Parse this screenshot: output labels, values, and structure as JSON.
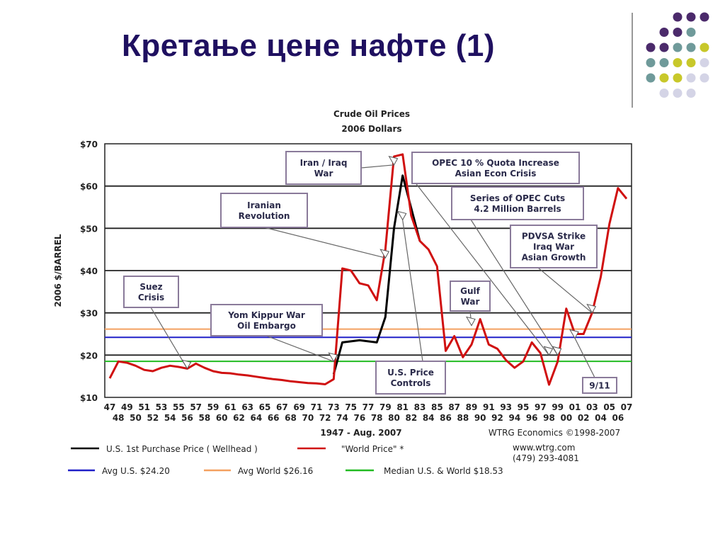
{
  "slide": {
    "title": "Кретање цене нафте (1)"
  },
  "decoration": {
    "dot_colors": [
      "#4b2a6b",
      "#6f9a9a",
      "#c8c82a",
      "#d4d4e6"
    ]
  },
  "chart_data": {
    "type": "line",
    "title": "Crude Oil Prices",
    "subtitle": "2006 Dollars",
    "ylabel": "2006 $/BARREL",
    "xlabel": "1947 - Aug. 2007",
    "source": "WTRG Economics  ©1998-2007",
    "website": "www.wtrg.com",
    "phone": "(479) 293-4081",
    "ylim": [
      10,
      70
    ],
    "xlim": [
      1947,
      2007
    ],
    "y_ticks": [
      "$10",
      "$20",
      "$30",
      "$40",
      "$50",
      "$60",
      "$70"
    ],
    "y_tick_values": [
      10,
      20,
      30,
      40,
      50,
      60,
      70
    ],
    "x_ticks_top": [
      "47",
      "49",
      "51",
      "53",
      "55",
      "57",
      "59",
      "61",
      "63",
      "65",
      "67",
      "69",
      "71",
      "73",
      "75",
      "77",
      "79",
      "81",
      "83",
      "85",
      "87",
      "89",
      "91",
      "93",
      "95",
      "97",
      "99",
      "01",
      "03",
      "05",
      "07"
    ],
    "x_ticks_bottom": [
      "48",
      "50",
      "52",
      "54",
      "56",
      "58",
      "60",
      "62",
      "64",
      "66",
      "68",
      "70",
      "72",
      "74",
      "76",
      "78",
      "80",
      "82",
      "84",
      "86",
      "88",
      "90",
      "92",
      "94",
      "96",
      "98",
      "00",
      "02",
      "04",
      "06"
    ],
    "grid": true,
    "series": [
      {
        "name": "U.S. 1st Purchase Price ( Wellhead )",
        "color": "#000000",
        "x": [
          1973,
          1974,
          1976,
          1978,
          1979,
          1980,
          1981,
          1983
        ],
        "y": [
          15.5,
          23,
          23.5,
          23,
          29,
          50,
          62.5,
          47
        ]
      },
      {
        "name": "\"World Price\" *",
        "color": "#d01010",
        "x": [
          1947,
          1948,
          1949,
          1950,
          1951,
          1952,
          1953,
          1954,
          1955,
          1956,
          1957,
          1958,
          1959,
          1960,
          1961,
          1962,
          1963,
          1964,
          1965,
          1966,
          1967,
          1968,
          1969,
          1970,
          1971,
          1972,
          1973,
          1974,
          1975,
          1976,
          1977,
          1978,
          1979,
          1980,
          1981,
          1982,
          1983,
          1984,
          1985,
          1986,
          1987,
          1988,
          1989,
          1990,
          1991,
          1992,
          1993,
          1994,
          1995,
          1996,
          1997,
          1998,
          1999,
          2000,
          2001,
          2002,
          2003,
          2004,
          2005,
          2006,
          2007
        ],
        "y": [
          14.5,
          18.5,
          18.2,
          17.5,
          16.5,
          16.2,
          17,
          17.5,
          17.2,
          16.8,
          18,
          17,
          16.2,
          15.8,
          15.7,
          15.4,
          15.2,
          14.9,
          14.6,
          14.3,
          14.1,
          13.8,
          13.6,
          13.4,
          13.3,
          13.1,
          14.3,
          40.5,
          40,
          37,
          36.5,
          33,
          45,
          67,
          67.5,
          53,
          47,
          45,
          41,
          21,
          24.5,
          19.5,
          22.5,
          28.5,
          22.5,
          21.5,
          18.8,
          17,
          18.5,
          23,
          20.5,
          13,
          18.5,
          31,
          25,
          25,
          30,
          38.5,
          51,
          59.5,
          57
        ]
      }
    ],
    "reference_lines": [
      {
        "name": "Avg U.S. $24.20",
        "value": 24.2,
        "color": "#2020c8"
      },
      {
        "name": "Avg World $26.16",
        "value": 26.16,
        "color": "#f4a060"
      },
      {
        "name": "Median U.S. & World  $18.53",
        "value": 18.53,
        "color": "#22bb22"
      }
    ],
    "annotations": [
      {
        "id": "suez",
        "lines": [
          "Suez",
          "Crisis"
        ],
        "target": [
          1956,
          16.8
        ]
      },
      {
        "id": "yom-kippur",
        "lines": [
          "Yom Kippur War",
          "Oil Embargo"
        ],
        "target": [
          1973,
          18.5
        ]
      },
      {
        "id": "iranian-revolution",
        "lines": [
          "Iranian",
          "Revolution"
        ],
        "target": [
          1979,
          43
        ]
      },
      {
        "id": "iran-iraq",
        "lines": [
          "Iran / Iraq",
          "War"
        ],
        "target": [
          1980,
          65
        ]
      },
      {
        "id": "opec-quota",
        "lines": [
          "OPEC 10 % Quota Increase",
          "Asian Econ Crisis"
        ],
        "target": [
          1998,
          20
        ]
      },
      {
        "id": "opec-cuts",
        "lines": [
          "Series of OPEC Cuts",
          "4.2 Million Barrels"
        ],
        "target": [
          1999,
          20
        ]
      },
      {
        "id": "gulf-war",
        "lines": [
          "Gulf",
          "War"
        ],
        "target": [
          1989,
          27
        ]
      },
      {
        "id": "pdvsa",
        "lines": [
          "PDVSA Strike",
          "Iraq War",
          "Asian Growth"
        ],
        "target": [
          2003,
          30
        ]
      },
      {
        "id": "price-controls",
        "lines": [
          "U.S. Price",
          "Controls"
        ],
        "target": [
          1981,
          52
        ]
      },
      {
        "id": "nine-eleven",
        "lines": [
          "9/11"
        ],
        "target": [
          2001,
          24
        ]
      }
    ]
  }
}
